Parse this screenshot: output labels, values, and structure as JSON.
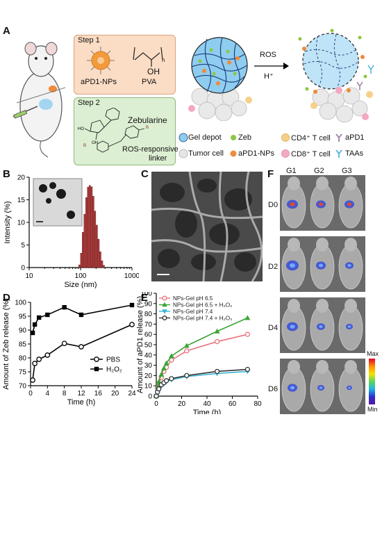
{
  "panel_letters": [
    "A",
    "B",
    "C",
    "D",
    "E",
    "F"
  ],
  "panelA": {
    "step1": {
      "title": "Step 1",
      "label_np": "aPD1-NPs",
      "label_pva": "PVA",
      "pva_sub": "n",
      "pva_oh": "OH"
    },
    "step2": {
      "title": "Step 2",
      "compound": "Zebularine",
      "linker_line1": "ROS-responsive",
      "linker_line2": "linker"
    },
    "arrow_top": "ROS",
    "arrow_bottom": "H⁺",
    "legend": [
      {
        "label": "Gel depot",
        "icon": "gel-depot-icon",
        "color": "#58a6dc"
      },
      {
        "label": "Zeb",
        "icon": "zeb-dot-icon",
        "color": "#8dc63f"
      },
      {
        "label": "CD4⁺ T cell",
        "icon": "cd4-cell-icon",
        "color": "#f6d08a"
      },
      {
        "label": "aPD1",
        "icon": "antibody-icon",
        "color": "#9b7ea0"
      },
      {
        "label": "Tumor cell",
        "icon": "tumor-cell-icon",
        "color": "#d9d9d9"
      },
      {
        "label": "aPD1-NPs",
        "icon": "nanoparticle-icon",
        "color": "#f08a3a"
      },
      {
        "label": "CD8⁺ T cell",
        "icon": "cd8-cell-icon",
        "color": "#f4a9c0"
      },
      {
        "label": "TAAs",
        "icon": "taa-icon",
        "color": "#4fb3d9"
      }
    ]
  },
  "chart_data": [
    {
      "panel": "B",
      "type": "bar",
      "xlabel": "Size (nm)",
      "ylabel": "Intensity (%)",
      "xscale": "log",
      "xlim": [
        10,
        1000
      ],
      "ylim": [
        0,
        20
      ],
      "xticks": [
        "10",
        "100",
        "1000"
      ],
      "yticks": [
        "0",
        "5",
        "10",
        "15",
        "20"
      ],
      "bar_color": "#b03a3a",
      "x": [
        95,
        103,
        111,
        120,
        130,
        140,
        151,
        164,
        177,
        191,
        207,
        224,
        242,
        262,
        283
      ],
      "values": [
        0.6,
        3.2,
        7.8,
        11.8,
        15.5,
        17.8,
        18.2,
        17.9,
        15.8,
        12.5,
        9.4,
        6.3,
        3.5,
        1.5,
        0.5
      ],
      "inset": "TEM image"
    },
    {
      "panel": "D",
      "type": "line",
      "xlabel": "Time (h)",
      "ylabel": "Amount of Zeb release (%)",
      "xlim": [
        0,
        24
      ],
      "ylim": [
        70,
        100
      ],
      "xticks": [
        "0",
        "4",
        "8",
        "12",
        "16",
        "20",
        "24"
      ],
      "yticks": [
        "70",
        "75",
        "80",
        "85",
        "90",
        "95",
        "100"
      ],
      "legend_position": "center-right",
      "series": [
        {
          "name": "PBS",
          "marker": "open-circle",
          "color": "#000000",
          "x": [
            0.5,
            1,
            2,
            4,
            8,
            12,
            24
          ],
          "y": [
            72,
            78,
            79.5,
            81,
            85.2,
            84,
            92
          ]
        },
        {
          "name": "H₂O₂",
          "marker": "filled-square",
          "color": "#000000",
          "x": [
            0.5,
            1,
            2,
            4,
            8,
            12,
            24
          ],
          "y": [
            89,
            92,
            94.5,
            95.5,
            98.2,
            95.5,
            99
          ]
        }
      ]
    },
    {
      "panel": "E",
      "type": "line",
      "xlabel": "Time (h)",
      "ylabel": "Amount of aPD1 release (%)",
      "xlim": [
        0,
        80
      ],
      "ylim": [
        0,
        100
      ],
      "xticks": [
        "0",
        "20",
        "40",
        "60",
        "80"
      ],
      "yticks": [
        "0",
        "10",
        "20",
        "30",
        "40",
        "50",
        "60",
        "70",
        "80",
        "90",
        "100"
      ],
      "legend_position": "top-left",
      "series": [
        {
          "name": "NPs-Gel pH 6.5",
          "marker": "open-circle",
          "color": "#e8737d",
          "x": [
            0,
            1,
            2,
            4,
            6,
            8,
            12,
            24,
            48,
            72
          ],
          "y": [
            0,
            8,
            12,
            18,
            24,
            28,
            35,
            44,
            53,
            60
          ]
        },
        {
          "name": "NPs-Gel pH 6.5 + H₂O₂",
          "marker": "filled-triangle",
          "color": "#3aa535",
          "x": [
            0,
            1,
            2,
            4,
            6,
            8,
            12,
            24,
            48,
            72
          ],
          "y": [
            0,
            9,
            14,
            21,
            27,
            32,
            39,
            49,
            63,
            76
          ]
        },
        {
          "name": "NPs-Gel pH 7.4",
          "marker": "filled-triangle-down",
          "color": "#3bb5d9",
          "x": [
            0,
            1,
            2,
            4,
            6,
            8,
            12,
            24,
            48,
            72
          ],
          "y": [
            0,
            4,
            7,
            10,
            12,
            14,
            16,
            19,
            22,
            24
          ]
        },
        {
          "name": "NPs-Gel pH 7.4 + H₂O₂",
          "marker": "open-circle",
          "color": "#333333",
          "x": [
            0,
            1,
            2,
            4,
            6,
            8,
            12,
            24,
            48,
            72
          ],
          "y": [
            0,
            4,
            7,
            11,
            13,
            15,
            17,
            20,
            24,
            26
          ]
        }
      ]
    }
  ],
  "panelF": {
    "columns": [
      "G1",
      "G2",
      "G3"
    ],
    "rows": [
      "D0",
      "D2",
      "D4",
      "D6"
    ],
    "colorbar_max": "Max",
    "colorbar_min": "Min"
  }
}
